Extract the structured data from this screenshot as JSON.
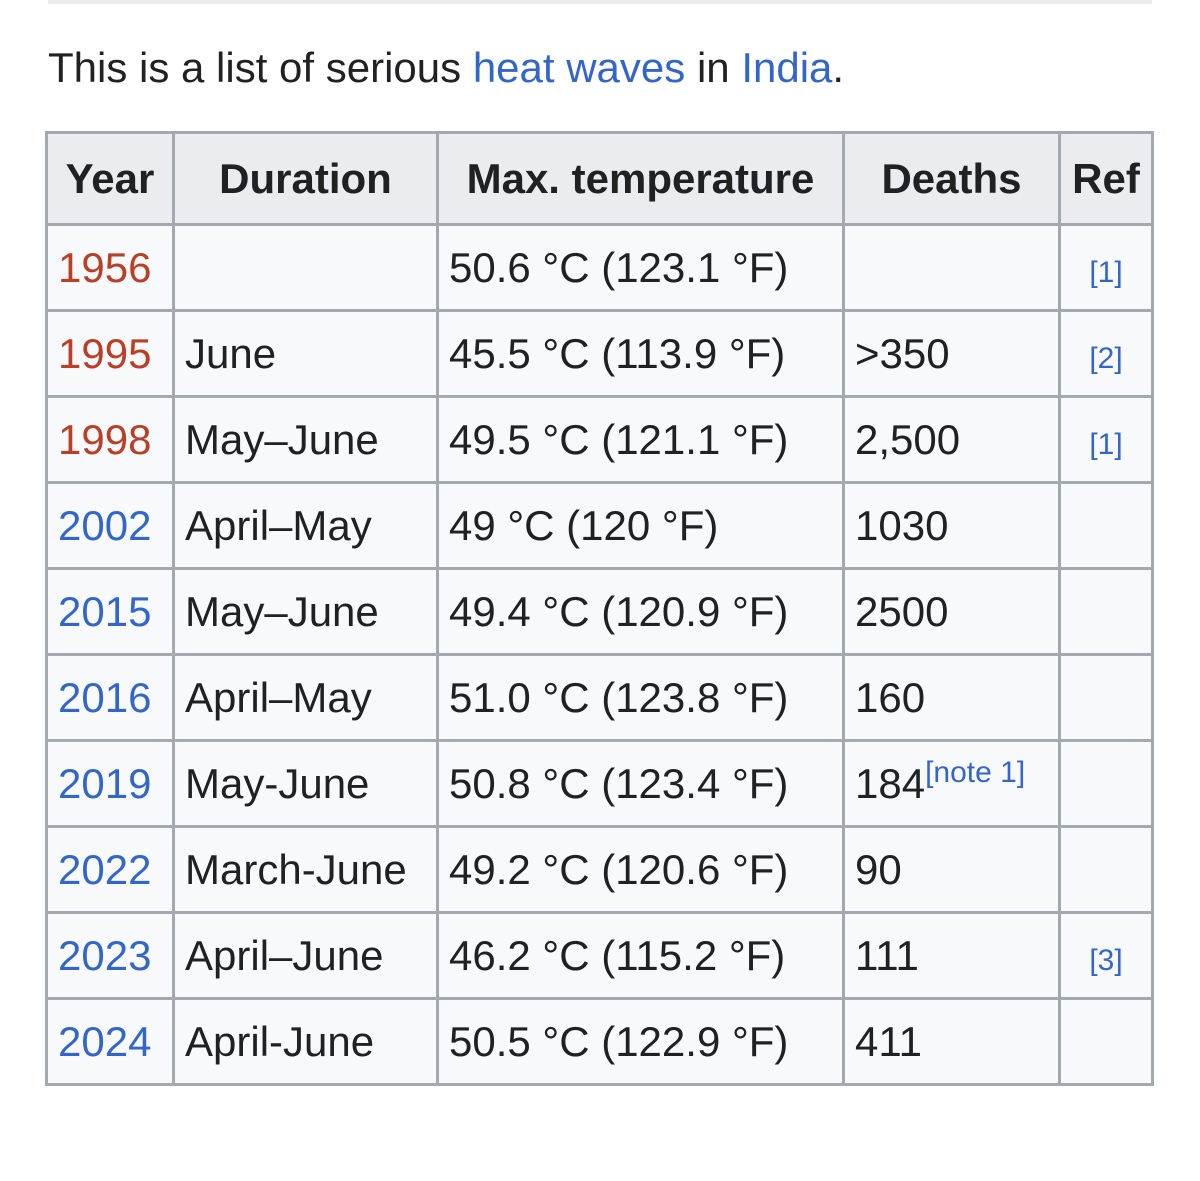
{
  "intro": {
    "prefix": "This is a list of serious ",
    "link1": "heat waves",
    "middle": " in ",
    "link2": "India",
    "suffix": "."
  },
  "table": {
    "headers": [
      "Year",
      "Duration",
      "Max. temperature",
      "Deaths",
      "Ref"
    ],
    "rows": [
      {
        "year": "1956",
        "duration": "",
        "temp": "50.6 °C (123.1 °F)",
        "deaths": "",
        "note": "",
        "ref": "[1]"
      },
      {
        "year": "1995",
        "duration": "June",
        "temp": "45.5 °C (113.9 °F)",
        "deaths": ">350",
        "note": "",
        "ref": "[2]"
      },
      {
        "year": "1998",
        "duration": "May–June",
        "temp": "49.5 °C (121.1 °F)",
        "deaths": "2,500",
        "note": "",
        "ref": "[1]"
      },
      {
        "year": "2002",
        "duration": "April–May",
        "temp": "49 °C (120 °F)",
        "deaths": "1030",
        "note": "",
        "ref": ""
      },
      {
        "year": "2015",
        "duration": "May–June",
        "temp": "49.4 °C (120.9 °F)",
        "deaths": "2500",
        "note": "",
        "ref": ""
      },
      {
        "year": "2016",
        "duration": "April–May",
        "temp": "51.0 °C (123.8 °F)",
        "deaths": "160",
        "note": "",
        "ref": ""
      },
      {
        "year": "2019",
        "duration": "May-June",
        "temp": "50.8 °C (123.4 °F)",
        "deaths": "184",
        "note": "[note 1]",
        "ref": ""
      },
      {
        "year": "2022",
        "duration": "March-June",
        "temp": "49.2 °C (120.6 °F)",
        "deaths": "90",
        "note": "",
        "ref": ""
      },
      {
        "year": "2023",
        "duration": "April–June",
        "temp": "46.2 °C (115.2 °F)",
        "deaths": "111",
        "note": "",
        "ref": "[3]"
      },
      {
        "year": "2024",
        "duration": "April-June",
        "temp": "50.5 °C (122.9 °F)",
        "deaths": "411",
        "note": "",
        "ref": ""
      }
    ]
  },
  "colors": {
    "link": "#3366cc",
    "redlink": "#ba3f26",
    "text": "#202122",
    "border": "#a2a9b1",
    "header_bg": "#eaecf0",
    "cell_bg": "#f8f9fa"
  }
}
